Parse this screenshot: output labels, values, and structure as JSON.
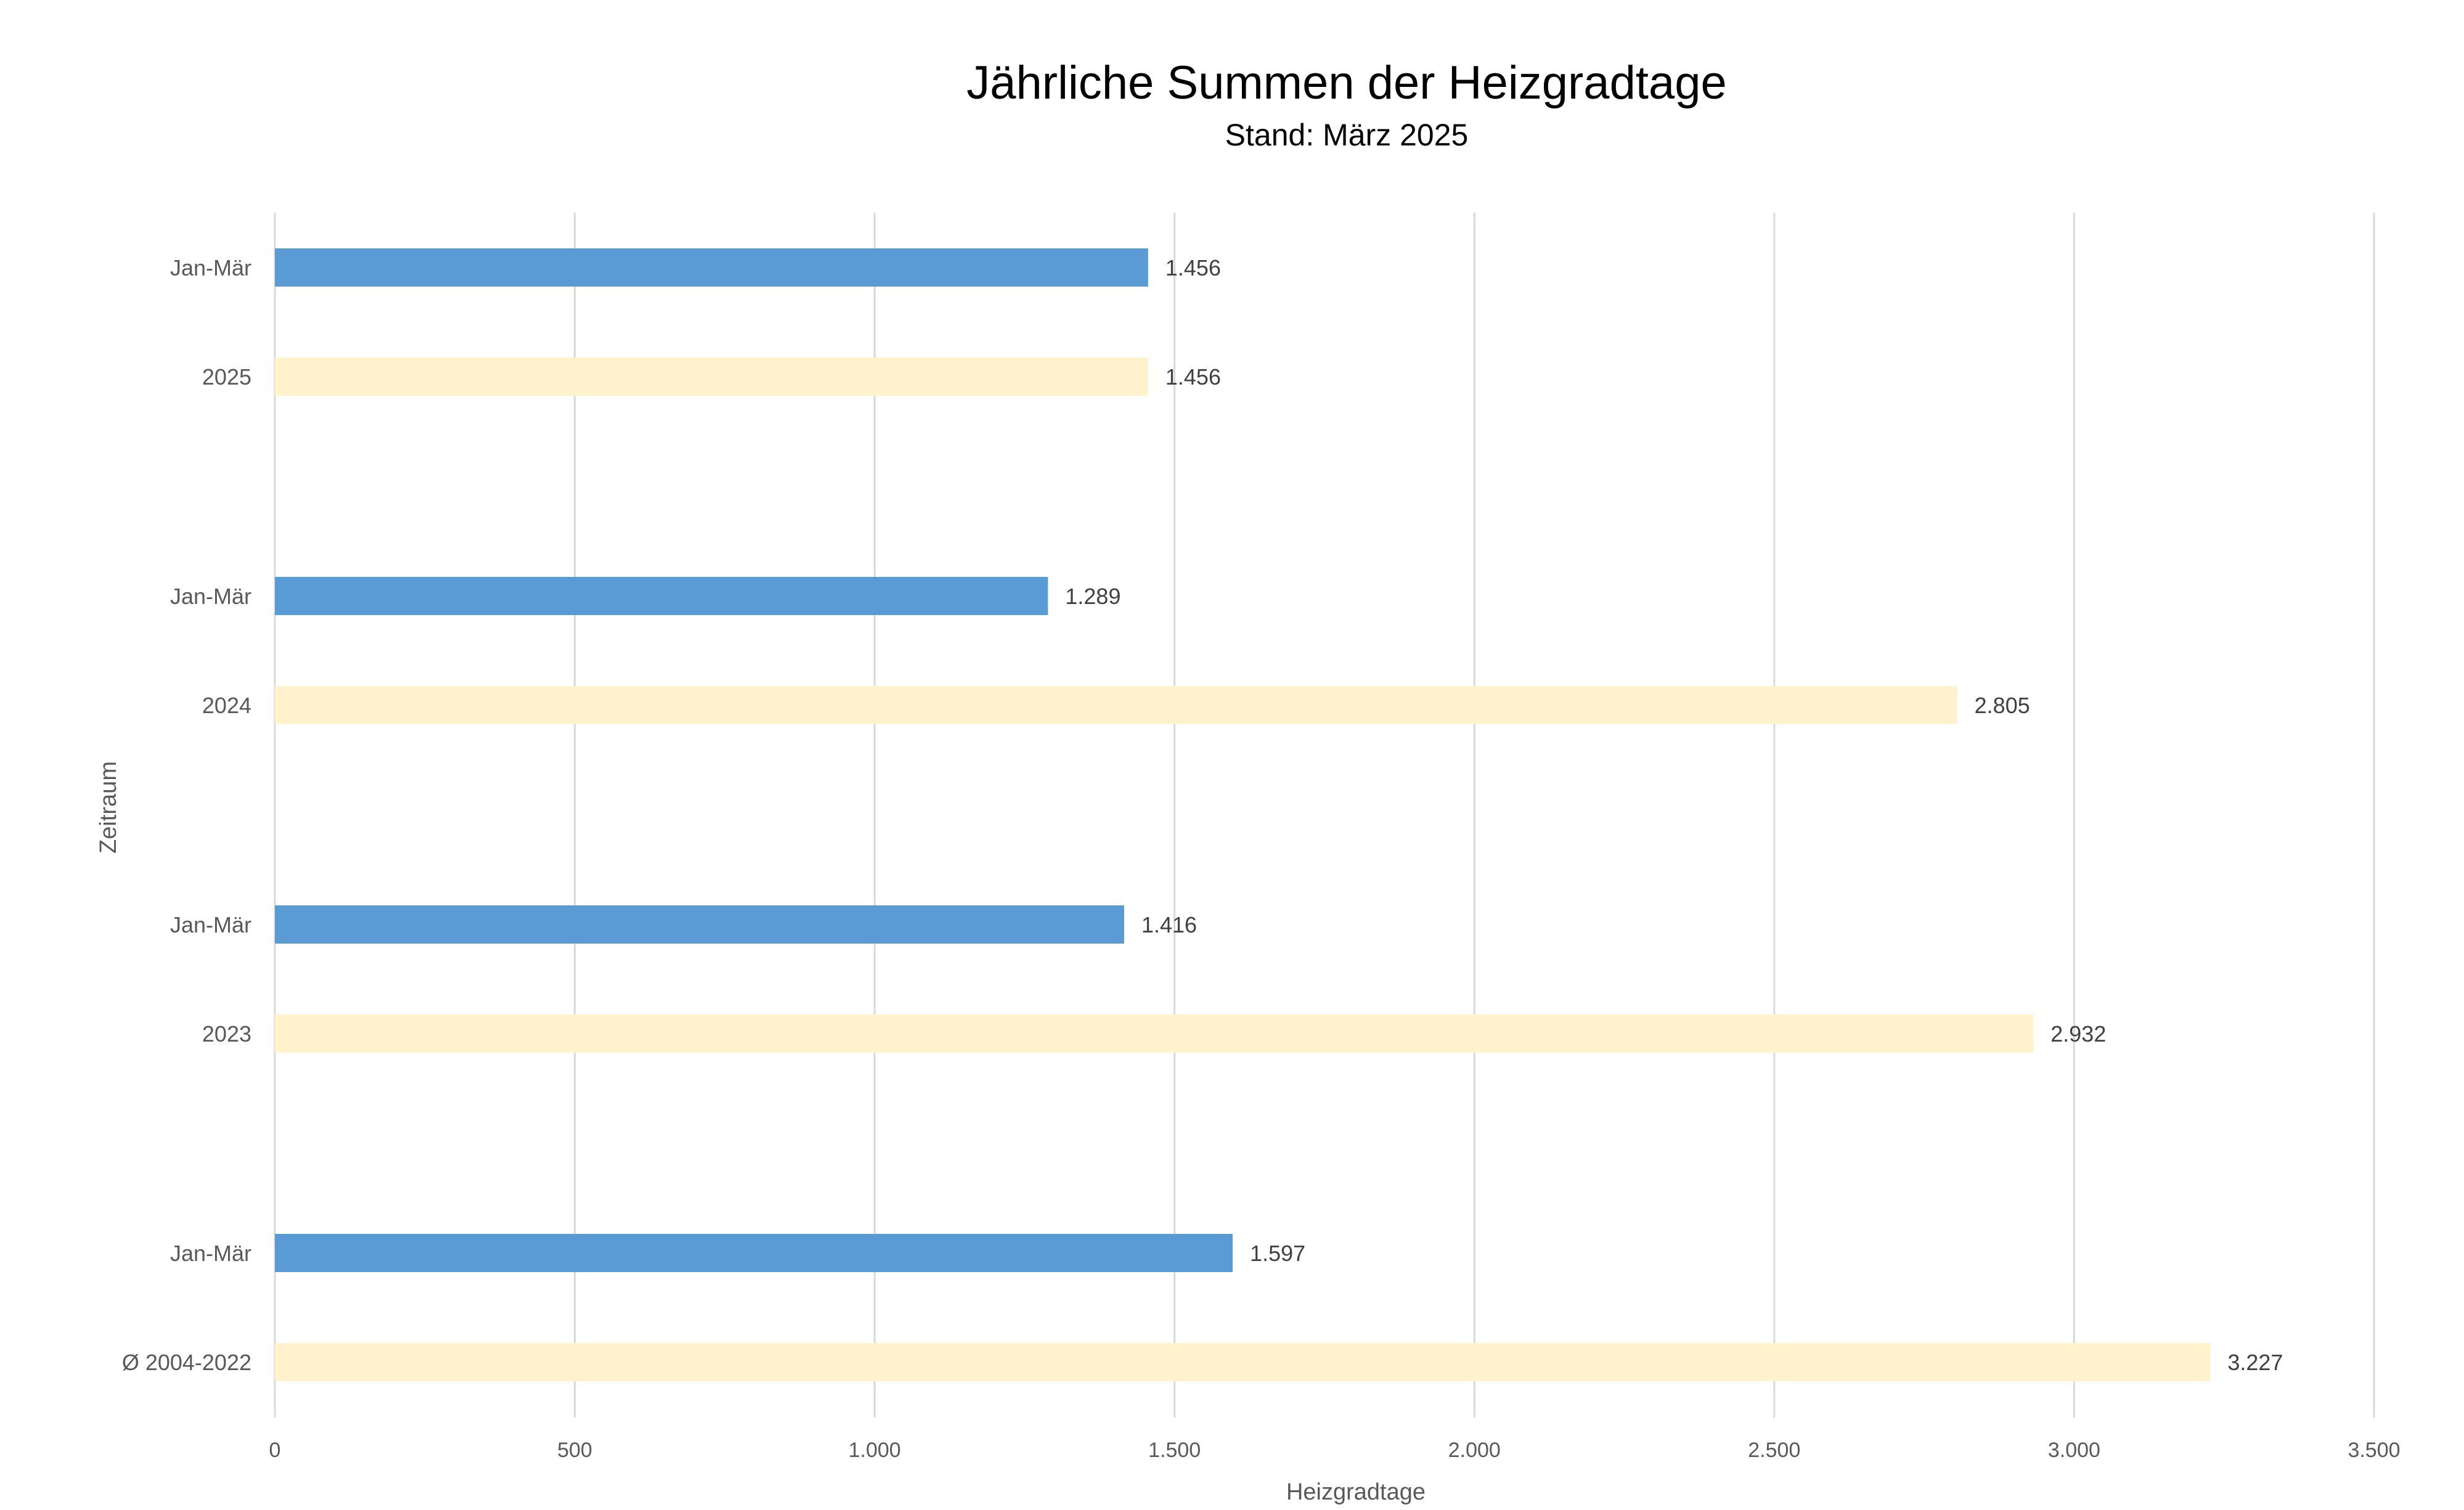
{
  "chart_data": {
    "type": "bar",
    "orientation": "horizontal",
    "title": "Jährliche Summen der Heizgradtage",
    "subtitle": "Stand: März 2025",
    "xlabel": "Heizgradtage",
    "ylabel": "Zeitraum",
    "xlim": [
      0,
      3500
    ],
    "x_ticks": [
      0,
      500,
      1000,
      1500,
      2000,
      2500,
      3000,
      3500
    ],
    "x_tick_labels": [
      "0",
      "500",
      "1.000",
      "1.500",
      "2.000",
      "2.500",
      "3.000",
      "3.500"
    ],
    "grid": "vertical",
    "legend": "none",
    "bars": [
      {
        "label": "Jan-Mär",
        "value": 1456,
        "value_label": "1.456",
        "color": "#5b9bd5"
      },
      {
        "label": "2025",
        "value": 1456,
        "value_label": "1.456",
        "color": "#fff2cc"
      },
      {
        "label": "Jan-Mär",
        "value": 1289,
        "value_label": "1.289",
        "color": "#5b9bd5"
      },
      {
        "label": "2024",
        "value": 2805,
        "value_label": "2.805",
        "color": "#fff2cc"
      },
      {
        "label": "Jan-Mär",
        "value": 1416,
        "value_label": "1.416",
        "color": "#5b9bd5"
      },
      {
        "label": "2023",
        "value": 2932,
        "value_label": "2.932",
        "color": "#fff2cc"
      },
      {
        "label": "Jan-Mär",
        "value": 1597,
        "value_label": "1.597",
        "color": "#5b9bd5"
      },
      {
        "label": "Ø 2004-2022",
        "value": 3227,
        "value_label": "3.227",
        "color": "#fff2cc"
      }
    ],
    "colors": {
      "jan_mar": "#5b9bd5",
      "annual": "#fff2cc",
      "grid": "#d9d9d9"
    }
  }
}
